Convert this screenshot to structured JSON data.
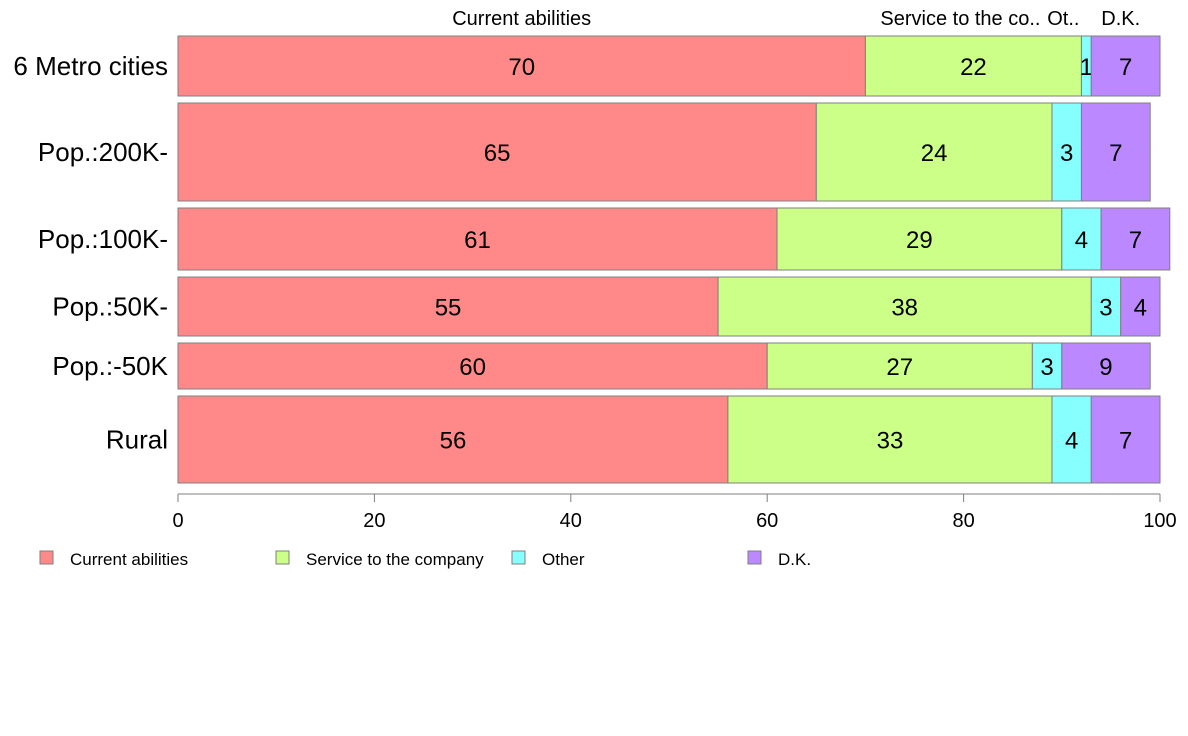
{
  "chart_data": {
    "type": "bar",
    "orientation": "horizontal",
    "stacked": true,
    "percent": true,
    "categories": [
      "6 Metro cities",
      "Pop.:200K-",
      "Pop.:100K-",
      "Pop.:50K-",
      "Pop.:-50K",
      "Rural"
    ],
    "series": [
      {
        "name": "Current abilities",
        "color": "#ff8888",
        "values": [
          70,
          65,
          61,
          55,
          60,
          56
        ]
      },
      {
        "name": "Service to the company",
        "color": "#ccff88",
        "values": [
          22,
          24,
          29,
          38,
          27,
          33
        ]
      },
      {
        "name": "Other",
        "color": "#88ffff",
        "values": [
          1,
          3,
          4,
          3,
          3,
          4
        ]
      },
      {
        "name": "D.K.",
        "color": "#bb88ff",
        "values": [
          7,
          7,
          7,
          4,
          9,
          7
        ]
      }
    ],
    "xlim": [
      0,
      100
    ],
    "xticks": [
      0,
      20,
      40,
      60,
      80,
      100
    ],
    "top_labels": [
      "Current abilities",
      "Service to the co..",
      "Ot..",
      "D.K."
    ],
    "legend_position": "bottom",
    "grid": false
  }
}
